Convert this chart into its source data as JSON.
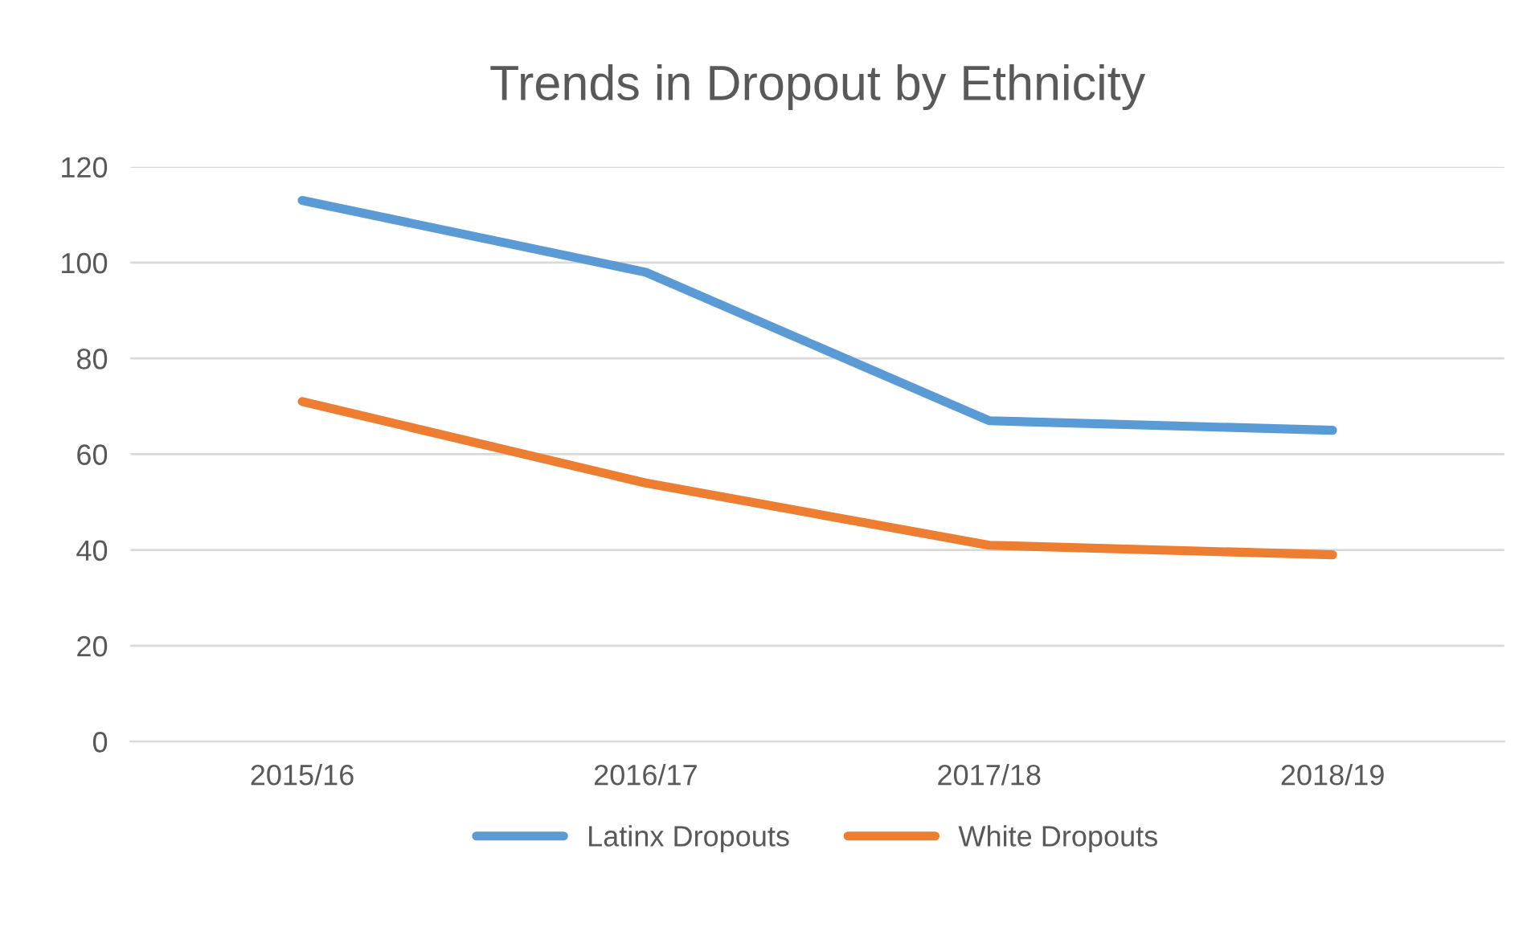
{
  "chart_data": {
    "type": "line",
    "title": "Trends in Dropout by Ethnicity",
    "categories": [
      "2015/16",
      "2016/17",
      "2017/18",
      "2018/19"
    ],
    "series": [
      {
        "name": "Latinx Dropouts",
        "color": "#5b9bd5",
        "values": [
          113,
          98,
          67,
          65
        ]
      },
      {
        "name": "White Dropouts",
        "color": "#ed7d31",
        "values": [
          71,
          54,
          41,
          39
        ]
      }
    ],
    "ylim": [
      0,
      120
    ],
    "yticks": [
      0,
      20,
      40,
      60,
      80,
      100,
      120
    ],
    "grid": "y",
    "legend": "bottom",
    "marker": "none",
    "line_style": "solid"
  }
}
